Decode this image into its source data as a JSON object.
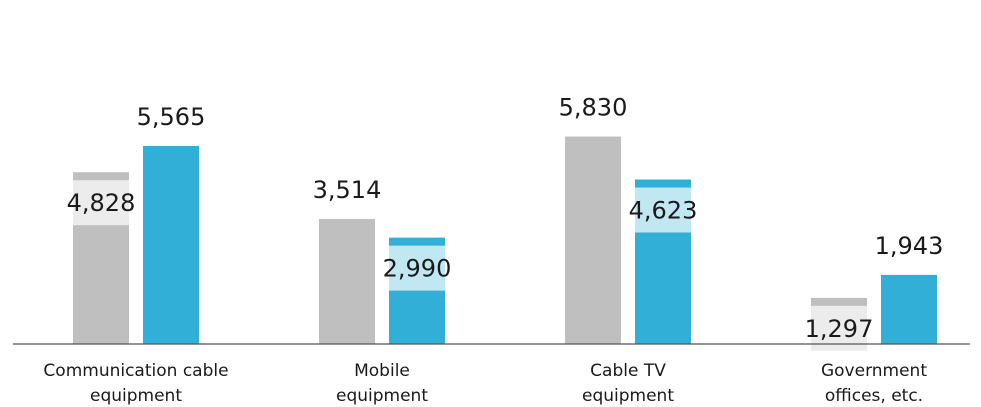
{
  "chart_data": {
    "type": "bar",
    "categories": [
      [
        "Communication cable",
        "equipment"
      ],
      [
        "Mobile",
        "equipment"
      ],
      [
        "Cable TV",
        "equipment"
      ],
      [
        "Government",
        "offices, etc."
      ]
    ],
    "series": [
      {
        "color": "#bfbfbf",
        "values": [
          4828,
          3514,
          5830,
          1297
        ],
        "value_labels": [
          "4,828",
          "3,514",
          "5,830",
          "1,297"
        ]
      },
      {
        "color": "#31afd6",
        "values": [
          5565,
          2990,
          4623,
          1943
        ],
        "value_labels": [
          "5,565",
          "2,990",
          "4,623",
          "1,943"
        ]
      }
    ],
    "ylim": [
      0,
      9668
    ]
  }
}
